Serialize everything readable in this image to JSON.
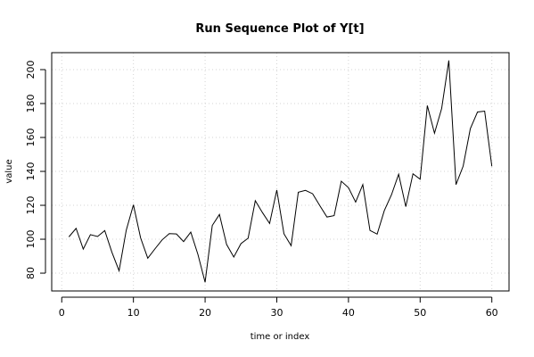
{
  "chart_data": {
    "type": "line",
    "title": "Run Sequence Plot of Y[t]",
    "xlabel": "time or index",
    "ylabel": "value",
    "xlim": [
      -1.4,
      62.4
    ],
    "ylim": [
      69.5,
      210
    ],
    "x_ticks": [
      0,
      10,
      20,
      30,
      40,
      50,
      60
    ],
    "x_tick_labels": [
      "0",
      "10",
      "20",
      "30",
      "40",
      "50",
      "60"
    ],
    "y_ticks": [
      80,
      100,
      120,
      140,
      160,
      180,
      200
    ],
    "y_tick_labels": [
      "80",
      "100",
      "120",
      "140",
      "160",
      "180",
      "200"
    ],
    "grid": true,
    "series": [
      {
        "color": "#000000",
        "x": [
          1,
          2,
          3,
          4,
          5,
          6,
          7,
          8,
          9,
          10,
          11,
          12,
          13,
          14,
          15,
          16,
          17,
          18,
          19,
          20,
          21,
          22,
          23,
          24,
          25,
          26,
          27,
          28,
          29,
          30,
          31,
          32,
          33,
          34,
          35,
          36,
          37,
          38,
          39,
          40,
          41,
          42,
          43,
          44,
          45,
          46,
          47,
          48,
          49,
          50,
          51,
          52,
          53,
          54,
          55,
          56,
          57,
          58,
          59,
          60
        ],
        "values": [
          101.4,
          106.4,
          94.2,
          102.7,
          101.6,
          105.1,
          92.3,
          81.4,
          105.3,
          120.3,
          100.8,
          88.8,
          94.3,
          99.6,
          103.3,
          103.1,
          98.6,
          104.2,
          91.0,
          74.6,
          108.1,
          114.6,
          96.9,
          89.5,
          97.4,
          100.6,
          122.7,
          115.7,
          109.3,
          129.0,
          103.2,
          96.2,
          127.7,
          128.8,
          126.8,
          119.8,
          113.1,
          113.9,
          134.2,
          130.4,
          121.9,
          132.2,
          105.2,
          103.0,
          116.9,
          126.2,
          138.3,
          119.2,
          138.6,
          135.4,
          178.8,
          162.5,
          177.1,
          205.4,
          132.2,
          143.1,
          165.2,
          175.0,
          175.5,
          143.0
        ]
      }
    ]
  }
}
